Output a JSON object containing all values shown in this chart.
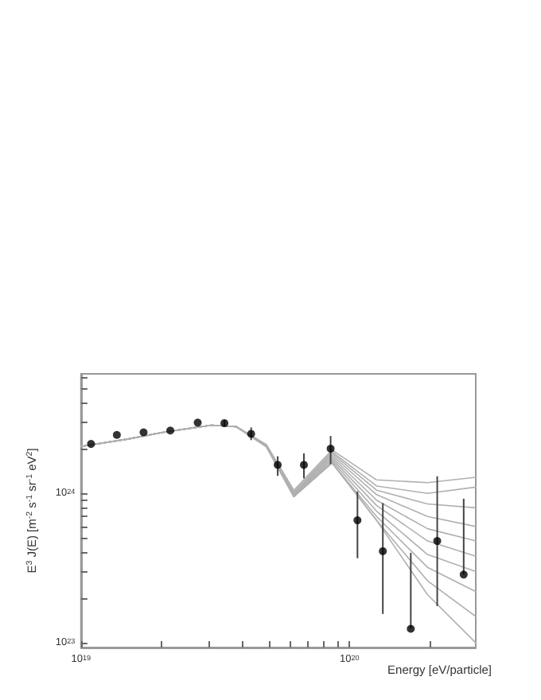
{
  "chart_data": {
    "type": "line",
    "xlabel": "Energy [eV/particle]",
    "ylabel": "E$^{3}$ J(E) [m$^{-2}$ s$^{-1}$ sr$^{-1}$ eV$^{2}$]",
    "log": "xy",
    "grid": false,
    "marker": "none",
    "xlim": [
      1e+19,
      2.95e+20
    ],
    "ylim": [
      9.3e+22,
      6.3e+24
    ],
    "xticks": [
      {
        "value": 1e+19,
        "label": "10$^{19}$"
      },
      {
        "value": 2e+19,
        "label": null
      },
      {
        "value": 3e+19,
        "label": null
      },
      {
        "value": 4e+19,
        "label": null
      },
      {
        "value": 5e+19,
        "label": null
      },
      {
        "value": 6e+19,
        "label": null
      },
      {
        "value": 7e+19,
        "label": null
      },
      {
        "value": 8e+19,
        "label": null
      },
      {
        "value": 9e+19,
        "label": null
      },
      {
        "value": 1e+20,
        "label": "10$^{20}$"
      },
      {
        "value": 2e+20,
        "label": null
      }
    ],
    "yticks": [
      {
        "value": 1e+23,
        "label": "10$^{23}$"
      },
      {
        "value": 2e+23,
        "label": null
      },
      {
        "value": 3e+23,
        "label": null
      },
      {
        "value": 4e+23,
        "label": null
      },
      {
        "value": 5e+23,
        "label": null
      },
      {
        "value": 6e+23,
        "label": null
      },
      {
        "value": 7e+23,
        "label": null
      },
      {
        "value": 8e+23,
        "label": null
      },
      {
        "value": 9e+23,
        "label": null
      },
      {
        "value": 1e+24,
        "label": "10$^{24}$"
      },
      {
        "value": 2e+24,
        "label": null
      },
      {
        "value": 3e+24,
        "label": null
      },
      {
        "value": 4e+24,
        "label": null
      },
      {
        "value": 5e+24,
        "label": null
      },
      {
        "value": 6e+24,
        "label": null
      }
    ],
    "x": [
      1e+19,
      1.5e+19,
      2e+19,
      3.06e+19,
      3.79e+19,
      4.9e+19,
      6.2e+19,
      8.6e+19,
      1.26e+20,
      1.95e+20,
      2.95e+20
    ],
    "series": [
      {
        "color": "#b0b0b0",
        "values": [
          2.06e+24,
          2.31e+24,
          2.55e+24,
          2.86e+24,
          2.79e+24,
          2.12e+24,
          1.05e+24,
          1.95e+24,
          1.23e+24,
          1.18e+24,
          1.28e+24
        ]
      },
      {
        "color": "#b0b0b0",
        "values": [
          2.06e+24,
          2.31e+24,
          2.55e+24,
          2.86e+24,
          2.79e+24,
          2.11e+24,
          1.02e+24,
          1.9e+24,
          1.12e+24,
          1e+24,
          1.1e+24
        ]
      },
      {
        "color": "#b0b0b0",
        "values": [
          2.06e+24,
          2.31e+24,
          2.55e+24,
          2.86e+24,
          2.79e+24,
          2.1e+24,
          1e+24,
          1.85e+24,
          1.05e+24,
          8.5e+23,
          8e+23
        ]
      },
      {
        "color": "#b0b0b0",
        "values": [
          2.06e+24,
          2.31e+24,
          2.55e+24,
          2.86e+24,
          2.79e+24,
          2.09e+24,
          1e+24,
          1.8e+24,
          9.8e+23,
          7e+23,
          6e+23
        ]
      },
      {
        "color": "#b0b0b0",
        "values": [
          2.06e+24,
          2.31e+24,
          2.55e+24,
          2.86e+24,
          2.79e+24,
          2.08e+24,
          9.8e+23,
          1.75e+24,
          9e+23,
          5.8e+23,
          4.8e+23
        ]
      },
      {
        "color": "#b0b0b0",
        "values": [
          2.06e+24,
          2.31e+24,
          2.55e+24,
          2.86e+24,
          2.79e+24,
          2.07e+24,
          9.7e+23,
          1.7e+24,
          8.3e+23,
          4.8e+23,
          3.8e+23
        ]
      },
      {
        "color": "#b0b0b0",
        "values": [
          2.06e+24,
          2.31e+24,
          2.55e+24,
          2.86e+24,
          2.79e+24,
          2.06e+24,
          9.6e+23,
          1.65e+24,
          7.6e+23,
          3.9e+23,
          3e+23
        ]
      },
      {
        "color": "#b0b0b0",
        "values": [
          2.06e+24,
          2.31e+24,
          2.55e+24,
          2.86e+24,
          2.79e+24,
          2.05e+24,
          9.5e+23,
          1.6e+24,
          7e+23,
          3.2e+23,
          2.2e+23
        ]
      },
      {
        "color": "#b0b0b0",
        "values": [
          2.06e+24,
          2.31e+24,
          2.55e+24,
          2.86e+24,
          2.79e+24,
          2.05e+24,
          9.5e+23,
          1.6e+24,
          6.6e+23,
          2.6e+23,
          1.5e+23
        ]
      },
      {
        "color": "#b0b0b0",
        "values": [
          2.06e+24,
          2.31e+24,
          2.55e+24,
          2.86e+24,
          2.79e+24,
          2.05e+24,
          9.5e+23,
          1.6e+24,
          6.6e+23,
          2.1e+23,
          1e+23
        ]
      },
      {
        "type": "scatter",
        "marker": "circle",
        "color": "#000000",
        "x": [
          1.09e+19,
          1.36e+19,
          1.71e+19,
          2.15e+19,
          2.72e+19,
          3.42e+19,
          4.3e+19,
          5.4e+19,
          6.76e+19,
          8.5e+19,
          1.07e+20,
          1.33e+20,
          1.69e+20,
          2.12e+20,
          2.66e+20
        ],
        "values": [
          2.14e+24,
          2.46e+24,
          2.56e+24,
          2.63e+24,
          2.97e+24,
          2.95e+24,
          2.5e+24,
          1.55e+24,
          1.55e+24,
          1.99e+24,
          6.6e+23,
          4.1e+23,
          1.24e+23,
          4.8e+23,
          2.86e+23
        ],
        "errors": [
          null,
          null,
          null,
          null,
          null,
          [
            2.81e+24,
            3.1e+24
          ],
          [
            2.27e+24,
            2.76e+24
          ],
          [
            1.31e+24,
            1.77e+24
          ],
          [
            1.26e+24,
            1.85e+24
          ],
          [
            1.57e+24,
            2.42e+24
          ],
          [
            3.68e+23,
            1.03e+24
          ],
          [
            1.56e+23,
            8.6e+23
          ],
          [
            1.24e+23,
            4e+23
          ],
          [
            1.76e+23,
            1.3e+24
          ],
          [
            2.86e+23,
            9.2e+23
          ]
        ]
      }
    ]
  }
}
